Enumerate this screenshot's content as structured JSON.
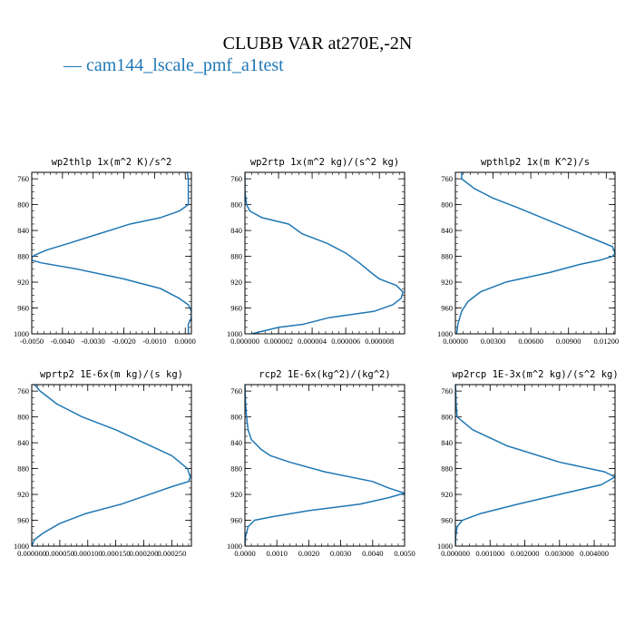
{
  "figure": {
    "title": "CLUBB VAR at270E,-2N",
    "legend": [
      {
        "name": "cam144_lscale_pmf_a1test",
        "color": "#1f77b4"
      }
    ]
  },
  "chart_data": [
    {
      "type": "line",
      "title": "wp2thlp  1x(m^2 K)/s^2",
      "y": [
        745,
        760,
        780,
        800,
        810,
        820,
        830,
        845,
        860,
        870,
        878,
        882,
        886,
        890,
        900,
        915,
        930,
        945,
        955,
        965,
        975,
        985,
        1000
      ],
      "x": [
        5e-05,
        0.0001,
        0.0001,
        0.0001,
        -0.0002,
        -0.0008,
        -0.0018,
        -0.0028,
        -0.0038,
        -0.0045,
        -0.0049,
        -0.005,
        -0.005,
        -0.0047,
        -0.0035,
        -0.002,
        -0.0008,
        -0.0002,
        0.0001,
        0.0002,
        0.0002,
        0.0001,
        0.0001
      ],
      "series_color": "#1f77b4",
      "xlim": [
        -0.005,
        0.0002
      ],
      "ylim": [
        1000,
        750
      ],
      "xticks": [
        -0.005,
        -0.004,
        -0.003,
        -0.002,
        -0.001,
        0.0
      ],
      "xtick_labels": [
        "-0.0050",
        "-0.0040",
        "-0.0030",
        "-0.0020",
        "-0.0010",
        "0.0000"
      ],
      "yticks": [
        760,
        800,
        840,
        880,
        920,
        960,
        1000
      ],
      "ytick_labels": [
        "760",
        "800",
        "840",
        "880",
        "920",
        "960",
        "1000"
      ],
      "grid": false
    },
    {
      "type": "line",
      "title": "wp2rtp  1x(m^2 kg)/(s^2 kg)",
      "y": [
        745,
        760,
        780,
        800,
        810,
        820,
        830,
        845,
        860,
        875,
        890,
        905,
        915,
        925,
        935,
        945,
        955,
        965,
        975,
        985,
        990,
        1000
      ],
      "x": [
        0.0,
        0.0,
        0.0,
        1e-07,
        3e-07,
        1e-06,
        2.6e-06,
        3.4e-06,
        4.9e-06,
        6e-06,
        6.8e-06,
        7.5e-06,
        8e-06,
        9e-06,
        9.4e-06,
        9.3e-06,
        8.8e-06,
        7.7e-06,
        5e-06,
        3.5e-06,
        2e-06,
        4e-07
      ],
      "series_color": "#1f77b4",
      "xlim": [
        0.0,
        9.5e-06
      ],
      "ylim": [
        1000,
        750
      ],
      "xticks": [
        0.0,
        2e-06,
        4e-06,
        6e-06,
        8e-06
      ],
      "xtick_labels": [
        "0.000000",
        "0.000002",
        "0.000004",
        "0.000006",
        "0.000008"
      ],
      "yticks": [
        760,
        800,
        840,
        880,
        920,
        960,
        1000
      ],
      "ytick_labels": [
        "760",
        "800",
        "840",
        "880",
        "920",
        "960",
        "1000"
      ],
      "grid": false
    },
    {
      "type": "line",
      "title": "wpthlp2  1x(m K^2)/s",
      "y": [
        745,
        760,
        775,
        790,
        805,
        825,
        845,
        865,
        875,
        880,
        886,
        892,
        905,
        920,
        935,
        950,
        965,
        985,
        1000
      ],
      "x": [
        0.0005,
        0.0005,
        0.0015,
        0.003,
        0.005,
        0.0075,
        0.01,
        0.0125,
        0.0127,
        0.0125,
        0.0115,
        0.01,
        0.0075,
        0.004,
        0.002,
        0.001,
        0.0005,
        0.0002,
        0.0001
      ],
      "series_color": "#1f77b4",
      "xlim": [
        0.0,
        0.0127
      ],
      "ylim": [
        1000,
        750
      ],
      "xticks": [
        0.0,
        0.003,
        0.006,
        0.009,
        0.012
      ],
      "xtick_labels": [
        "0.00000",
        "0.00300",
        "0.00600",
        "0.00900",
        "0.01200"
      ],
      "yticks": [
        760,
        800,
        840,
        880,
        920,
        960,
        1000
      ],
      "ytick_labels": [
        "760",
        "800",
        "840",
        "880",
        "920",
        "960",
        "1000"
      ],
      "grid": false
    },
    {
      "type": "line",
      "title": "wprtp2  1E-6x(m kg)/(s kg)",
      "y": [
        745,
        760,
        780,
        800,
        820,
        840,
        860,
        880,
        893,
        900,
        908,
        920,
        935,
        950,
        965,
        980,
        990,
        1000
      ],
      "x": [
        0.0,
        1.5e-05,
        4.5e-05,
        9e-05,
        0.00015,
        0.0002,
        0.00025,
        0.000278,
        0.000283,
        0.00028,
        0.00025,
        0.00021,
        0.00016,
        9.5e-05,
        5e-05,
        2e-05,
        5e-06,
        0.0
      ],
      "series_color": "#1f77b4",
      "xlim": [
        0.0,
        0.000285
      ],
      "ylim": [
        1000,
        750
      ],
      "xticks": [
        0.0,
        5e-05,
        0.0001,
        0.00015,
        0.0002,
        0.00025
      ],
      "xtick_labels": [
        "0.000000",
        "0.000050",
        "0.000100",
        "0.000150",
        "0.000200",
        "0.000250"
      ],
      "yticks": [
        760,
        800,
        840,
        880,
        920,
        960,
        1000
      ],
      "ytick_labels": [
        "760",
        "800",
        "840",
        "880",
        "920",
        "960",
        "1000"
      ],
      "grid": false
    },
    {
      "type": "line",
      "title": "rcp2  1E-6x(kg^2)/(kg^2)",
      "y": [
        750,
        780,
        800,
        820,
        835,
        850,
        860,
        870,
        885,
        900,
        910,
        918,
        925,
        935,
        945,
        955,
        960,
        970,
        985,
        1000
      ],
      "x": [
        0.0,
        2e-05,
        5e-05,
        0.0001,
        0.0002,
        0.0005,
        0.0008,
        0.0014,
        0.0025,
        0.004,
        0.0045,
        0.005,
        0.0045,
        0.0036,
        0.002,
        0.0008,
        0.0003,
        0.0001,
        2e-05,
        0.0
      ],
      "series_color": "#1f77b4",
      "xlim": [
        0.0,
        0.005
      ],
      "ylim": [
        1000,
        750
      ],
      "xticks": [
        0.0,
        0.001,
        0.002,
        0.003,
        0.004,
        0.005
      ],
      "xtick_labels": [
        "0.0000",
        "0.0010",
        "0.0020",
        "0.0030",
        "0.0040",
        "0.0050"
      ],
      "yticks": [
        760,
        800,
        840,
        880,
        920,
        960,
        1000
      ],
      "ytick_labels": [
        "760",
        "800",
        "840",
        "880",
        "920",
        "960",
        "1000"
      ],
      "grid": false
    },
    {
      "type": "line",
      "title": "wp2rcp  1E-3x(m^2 kg)/(s^2 kg)",
      "y": [
        745,
        760,
        780,
        800,
        820,
        845,
        870,
        885,
        893,
        905,
        920,
        935,
        950,
        960,
        970,
        985,
        1000
      ],
      "x": [
        0.0,
        1e-05,
        2e-05,
        5e-05,
        0.0005,
        0.0015,
        0.003,
        0.0043,
        0.0046,
        0.0042,
        0.003,
        0.0018,
        0.0007,
        0.0002,
        5e-05,
        1e-05,
        0.0
      ],
      "series_color": "#1f77b4",
      "xlim": [
        0.0,
        0.0046
      ],
      "ylim": [
        1000,
        750
      ],
      "xticks": [
        0.0,
        0.001,
        0.002,
        0.003,
        0.004
      ],
      "xtick_labels": [
        "0.000000",
        "0.001000",
        "0.002000",
        "0.003000",
        "0.004000"
      ],
      "yticks": [
        760,
        800,
        840,
        880,
        920,
        960,
        1000
      ],
      "ytick_labels": [
        "760",
        "800",
        "840",
        "880",
        "920",
        "960",
        "1000"
      ],
      "grid": false
    }
  ]
}
